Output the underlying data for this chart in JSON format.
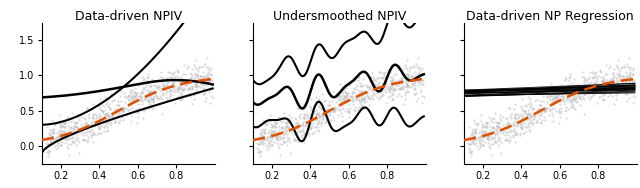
{
  "titles": [
    "Data-driven NPIV",
    "Undersmoothed NPIV",
    "Data-driven NP Regression"
  ],
  "xlim": [
    0.1,
    1.0
  ],
  "ylim": [
    -0.25,
    1.75
  ],
  "xticks": [
    0.2,
    0.4,
    0.6,
    0.8
  ],
  "yticks": [
    0.0,
    0.5,
    1.0,
    1.5
  ],
  "scatter_color": "#c0c0c0",
  "scatter_alpha": 0.6,
  "scatter_size": 2.5,
  "true_color": "#e05000",
  "true_lw": 1.8,
  "estimate_lw": 1.8,
  "band_lw": 1.5,
  "n_scatter": 800,
  "random_seed": 42,
  "title_fontsize": 9,
  "tick_fontsize": 7
}
